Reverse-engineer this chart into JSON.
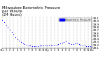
{
  "title": "Milwaukee Barometric Pressure\nper Minute\n(24 Hours)",
  "title_fontsize": 3.8,
  "bg_color": "#ffffff",
  "plot_bg_color": "#ffffff",
  "dot_color": "#0000ff",
  "dot_size": 0.8,
  "grid_color": "#aaaaaa",
  "legend_color": "#0000ff",
  "x_min": 0,
  "x_max": 1440,
  "y_min": 29.1,
  "y_max": 30.15,
  "y_ticks": [
    29.1,
    29.2,
    29.3,
    29.4,
    29.5,
    29.6,
    29.7,
    29.8,
    29.9,
    30.0,
    30.1
  ],
  "x_ticks": [
    0,
    60,
    120,
    180,
    240,
    300,
    360,
    420,
    480,
    540,
    600,
    660,
    720,
    780,
    840,
    900,
    960,
    1020,
    1080,
    1140,
    1200,
    1260,
    1320,
    1380,
    1440
  ],
  "x_tick_labels": [
    "12a",
    "1",
    "2",
    "3",
    "4",
    "5",
    "6",
    "7",
    "8",
    "9",
    "10",
    "11",
    "12p",
    "1",
    "2",
    "3",
    "4",
    "5",
    "6",
    "7",
    "8",
    "9",
    "10",
    "11",
    "12a"
  ],
  "data_x": [
    0,
    30,
    60,
    90,
    120,
    150,
    180,
    210,
    240,
    270,
    300,
    330,
    360,
    390,
    420,
    450,
    480,
    510,
    540,
    570,
    600,
    630,
    660,
    690,
    720,
    750,
    780,
    810,
    840,
    870,
    900,
    930,
    960,
    990,
    1020,
    1050,
    1080,
    1110,
    1140,
    1170,
    1200,
    1230,
    1260,
    1290,
    1320,
    1350,
    1380,
    1410,
    1440
  ],
  "data_y": [
    30.05,
    29.97,
    29.88,
    29.8,
    29.72,
    29.63,
    29.55,
    29.47,
    29.4,
    29.34,
    29.29,
    29.25,
    29.22,
    29.2,
    29.19,
    29.18,
    29.17,
    29.17,
    29.17,
    29.17,
    29.18,
    29.18,
    29.19,
    29.19,
    29.19,
    29.2,
    29.2,
    29.2,
    29.21,
    29.21,
    29.23,
    29.25,
    29.27,
    29.3,
    29.33,
    29.28,
    29.25,
    29.23,
    29.22,
    29.25,
    29.28,
    29.24,
    29.21,
    29.19,
    29.18,
    29.17,
    29.16,
    29.15,
    29.14
  ],
  "legend_label": "Barometric Pressure",
  "ylabel_fontsize": 3.0,
  "xlabel_fontsize": 2.5,
  "tick_fontsize": 2.5,
  "fig_width": 1.6,
  "fig_height": 0.87,
  "dpi": 100
}
